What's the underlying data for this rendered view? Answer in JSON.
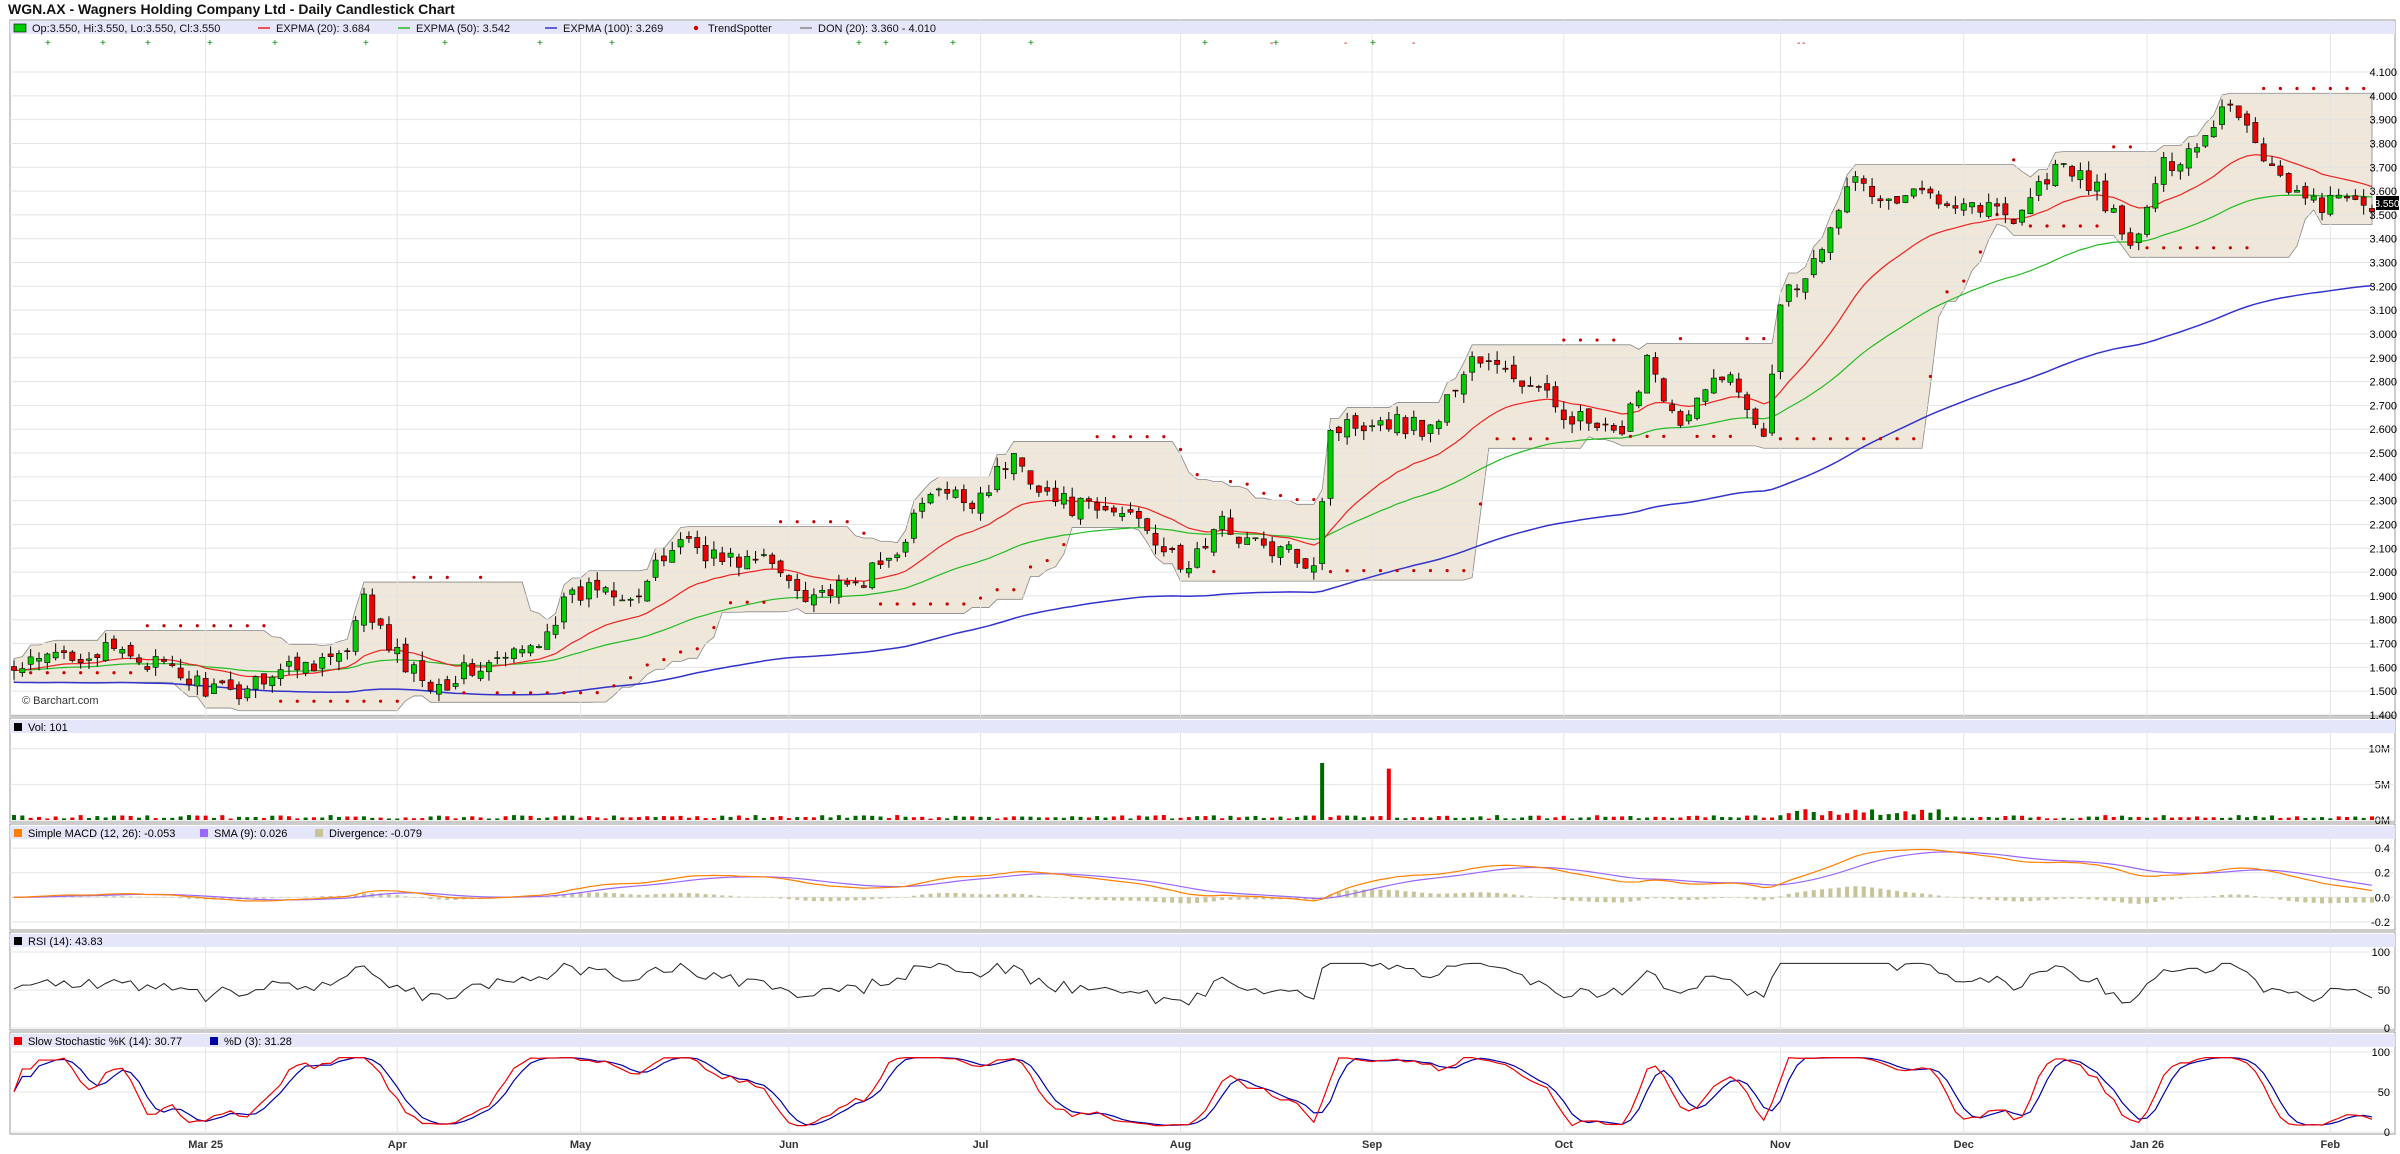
{
  "page": {
    "title": "WGN.AX - Wagners Holding Company Ltd - Daily Candlestick Chart"
  },
  "colors": {
    "up": "#00cc00",
    "down": "#ee0000",
    "expma20": "#ee2222",
    "expma50": "#22bb22",
    "expma100": "#3333cc",
    "trend": "#cc0000",
    "don_fill": "#efe7d9",
    "macd": "#ff7f00",
    "macd_signal": "#9966ff",
    "divergence": "#c8c49a",
    "stoch_k": "#ee0000",
    "stoch_d": "#0000aa",
    "legend_bg": "#e6e6fa"
  },
  "legends": {
    "main": [
      {
        "label": "Op:3.550, Hi:3.550, Lo:3.550, Cl:3.550",
        "icon": "green-box"
      },
      {
        "label": "EXPMA (20): 3.684",
        "icon": "red-line"
      },
      {
        "label": "EXPMA (50): 3.542",
        "icon": "green-line"
      },
      {
        "label": "EXPMA (100): 3.269",
        "icon": "blue-line"
      },
      {
        "label": "TrendSpotter",
        "icon": "red-diamond"
      },
      {
        "label": "DON (20): 3.360 - 4.010",
        "icon": "gray-line"
      }
    ],
    "volume": "Vol: 101",
    "macd": [
      "Simple MACD (12, 26): -0.053",
      "SMA (9): 0.026",
      "Divergence: -0.079"
    ],
    "rsi": "RSI (14): 43.83",
    "stoch": [
      "Slow Stochastic %K (14): 30.77",
      "%D (3): 31.28"
    ]
  },
  "watermark": "© Barchart.com",
  "last_price_label": "3.550",
  "chart_data": {
    "type": "candlestick",
    "title": "WGN.AX - Wagners Holding Company Ltd - Daily Candlestick Chart",
    "x_tick_labels": [
      "Mar 25",
      "Apr",
      "May",
      "Jun",
      "Jul",
      "Aug",
      "Sep",
      "Oct",
      "Nov",
      "Dec",
      "Jan 26",
      "Feb"
    ],
    "x_tick_index": [
      23,
      46,
      68,
      93,
      116,
      140,
      163,
      186,
      212,
      234,
      256,
      278
    ],
    "price_axis": {
      "min": 1.4,
      "max": 4.1,
      "step": 0.1
    },
    "close_anchors": [
      [
        0,
        1.58
      ],
      [
        6,
        1.66
      ],
      [
        14,
        1.66
      ],
      [
        20,
        1.56
      ],
      [
        26,
        1.48
      ],
      [
        30,
        1.57
      ],
      [
        36,
        1.63
      ],
      [
        40,
        1.65
      ],
      [
        42,
        1.88
      ],
      [
        45,
        1.68
      ],
      [
        48,
        1.58
      ],
      [
        51,
        1.53
      ],
      [
        54,
        1.58
      ],
      [
        58,
        1.62
      ],
      [
        62,
        1.68
      ],
      [
        66,
        1.86
      ],
      [
        70,
        1.95
      ],
      [
        75,
        1.91
      ],
      [
        80,
        2.15
      ],
      [
        85,
        2.05
      ],
      [
        90,
        2.05
      ],
      [
        95,
        1.92
      ],
      [
        100,
        1.92
      ],
      [
        105,
        2.05
      ],
      [
        110,
        2.33
      ],
      [
        115,
        2.3
      ],
      [
        120,
        2.48
      ],
      [
        125,
        2.3
      ],
      [
        130,
        2.25
      ],
      [
        135,
        2.25
      ],
      [
        140,
        2.0
      ],
      [
        145,
        2.2
      ],
      [
        150,
        2.1
      ],
      [
        156,
        2.05
      ],
      [
        158,
        2.6
      ],
      [
        164,
        2.65
      ],
      [
        170,
        2.6
      ],
      [
        175,
        2.9
      ],
      [
        180,
        2.82
      ],
      [
        186,
        2.68
      ],
      [
        190,
        2.6
      ],
      [
        193,
        2.55
      ],
      [
        196,
        2.92
      ],
      [
        200,
        2.6
      ],
      [
        205,
        2.85
      ],
      [
        210,
        2.6
      ],
      [
        212,
        3.15
      ],
      [
        216,
        3.3
      ],
      [
        220,
        3.65
      ],
      [
        225,
        3.55
      ],
      [
        230,
        3.6
      ],
      [
        235,
        3.55
      ],
      [
        240,
        3.5
      ],
      [
        245,
        3.7
      ],
      [
        250,
        3.62
      ],
      [
        254,
        3.35
      ],
      [
        258,
        3.7
      ],
      [
        262,
        3.8
      ],
      [
        266,
        3.99
      ],
      [
        270,
        3.75
      ],
      [
        275,
        3.55
      ],
      [
        278,
        3.55
      ]
    ],
    "volume_axis": {
      "ticks": [
        "10M",
        "5M",
        "0M"
      ]
    },
    "volume_spikes": [
      {
        "index": 157,
        "value": 8000000,
        "color": "up"
      },
      {
        "index": 165,
        "value": 7200000,
        "color": "down"
      }
    ],
    "macd_axis": {
      "ticks": [
        "0.4",
        "0.2",
        "0.0",
        "-0.2"
      ],
      "min": -0.2,
      "max": 0.4
    },
    "rsi_axis": {
      "ticks": [
        "100",
        "50",
        "0"
      ]
    },
    "stoch_axis": {
      "ticks": [
        "100",
        "50",
        "0"
      ]
    }
  }
}
